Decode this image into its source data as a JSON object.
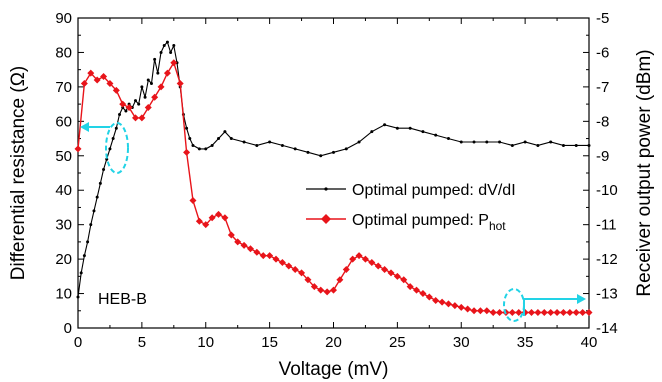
{
  "chart_data": {
    "type": "line",
    "xlabel": "Voltage (mV)",
    "ylabel": "Differential resistance (Ω)",
    "y2label": "Receiver output power (dBm)",
    "xlim": [
      0,
      40
    ],
    "ylim": [
      0,
      90
    ],
    "y2lim": [
      -14,
      -5
    ],
    "xticks": [
      "0",
      "5",
      "10",
      "15",
      "20",
      "25",
      "30",
      "35",
      "40"
    ],
    "yticks": [
      "0",
      "10",
      "20",
      "30",
      "40",
      "50",
      "60",
      "70",
      "80",
      "90"
    ],
    "y2ticks": [
      "-5",
      "-6",
      "-7",
      "-8",
      "-9",
      "-10",
      "-11",
      "-12",
      "-13",
      "-14"
    ],
    "annotation": "HEB-B",
    "grid": false,
    "legend_position": "center-right",
    "series": [
      {
        "name": "Optimal pumped: dV/dI",
        "name_main": "Optimal pumped: dV/dI",
        "axis": "left",
        "color": "#000000",
        "marker": "dot",
        "x": [
          0,
          0.25,
          0.5,
          0.75,
          1.0,
          1.25,
          1.5,
          1.75,
          2.0,
          2.25,
          2.5,
          2.75,
          3.0,
          3.25,
          3.5,
          3.75,
          4.0,
          4.25,
          4.5,
          4.75,
          5.0,
          5.25,
          5.5,
          5.75,
          6.0,
          6.25,
          6.5,
          6.75,
          7.0,
          7.25,
          7.5,
          7.75,
          8.0,
          8.25,
          8.5,
          8.75,
          9.0,
          9.5,
          10.0,
          10.5,
          11.0,
          11.5,
          12.0,
          13.0,
          14.0,
          15.0,
          16.0,
          17.0,
          18.0,
          19.0,
          20.0,
          21.0,
          22.0,
          23.0,
          24.0,
          25.0,
          26.0,
          27.0,
          28.0,
          29.0,
          30.0,
          31.0,
          32.0,
          33.0,
          34.0,
          35.0,
          36.0,
          37.0,
          38.0,
          39.0,
          40.0
        ],
        "values": [
          9,
          16,
          21,
          25,
          30,
          34,
          38,
          42,
          46,
          49,
          52,
          55,
          58,
          62,
          64,
          63,
          65,
          64,
          66,
          65,
          70,
          67,
          72,
          71,
          78,
          74,
          80,
          82,
          83,
          80,
          82,
          77,
          70,
          62,
          58,
          55,
          53,
          52,
          52,
          53,
          55,
          57,
          55,
          54,
          53,
          54,
          53,
          52,
          51,
          50,
          51,
          52,
          54,
          57,
          59,
          58,
          58,
          57,
          56,
          55,
          54,
          54,
          54,
          54,
          53,
          54,
          53,
          54,
          53,
          53,
          53
        ]
      },
      {
        "name": "Optimal pumped: Phot",
        "name_main": "Optimal pumped: P",
        "name_sub": "hot",
        "axis": "right",
        "color": "#e8141a",
        "marker": "diamond",
        "x": [
          0,
          0.5,
          1.0,
          1.5,
          2.0,
          2.5,
          3.0,
          3.5,
          4.0,
          4.5,
          5.0,
          5.5,
          6.0,
          6.5,
          7.0,
          7.5,
          8.0,
          8.5,
          9.0,
          9.5,
          10.0,
          10.5,
          11.0,
          11.5,
          12.0,
          12.5,
          13.0,
          13.5,
          14.0,
          14.5,
          15.0,
          15.5,
          16.0,
          16.5,
          17.0,
          17.5,
          18.0,
          18.5,
          19.0,
          19.5,
          20.0,
          20.5,
          21.0,
          21.5,
          22.0,
          22.5,
          23.0,
          23.5,
          24.0,
          24.5,
          25.0,
          25.5,
          26.0,
          26.5,
          27.0,
          27.5,
          28.0,
          28.5,
          29.0,
          29.5,
          30.0,
          30.5,
          31.0,
          31.5,
          32.0,
          32.5,
          33.0,
          33.5,
          34.0,
          34.5,
          35.0,
          35.5,
          36.0,
          36.5,
          37.0,
          37.5,
          38.0,
          38.5,
          39.0,
          39.5,
          40.0
        ],
        "values": [
          -8.8,
          -6.9,
          -6.6,
          -6.8,
          -6.7,
          -6.9,
          -7.1,
          -7.5,
          -7.6,
          -7.9,
          -7.9,
          -7.6,
          -7.3,
          -7.0,
          -6.6,
          -6.3,
          -6.9,
          -8.9,
          -10.3,
          -10.9,
          -11.0,
          -10.8,
          -10.7,
          -10.8,
          -11.3,
          -11.5,
          -11.6,
          -11.7,
          -11.8,
          -11.9,
          -11.9,
          -12.0,
          -12.1,
          -12.2,
          -12.3,
          -12.4,
          -12.6,
          -12.8,
          -12.9,
          -12.95,
          -12.9,
          -12.6,
          -12.3,
          -12.0,
          -11.9,
          -12.0,
          -12.1,
          -12.2,
          -12.3,
          -12.4,
          -12.5,
          -12.6,
          -12.8,
          -12.9,
          -13.0,
          -13.1,
          -13.2,
          -13.25,
          -13.3,
          -13.35,
          -13.4,
          -13.45,
          -13.5,
          -13.5,
          -13.5,
          -13.55,
          -13.55,
          -13.55,
          -13.55,
          -13.55,
          -13.55,
          -13.55,
          -13.55,
          -13.55,
          -13.55,
          -13.55,
          -13.55,
          -13.55,
          -13.55,
          -13.55,
          -13.55
        ]
      }
    ]
  }
}
